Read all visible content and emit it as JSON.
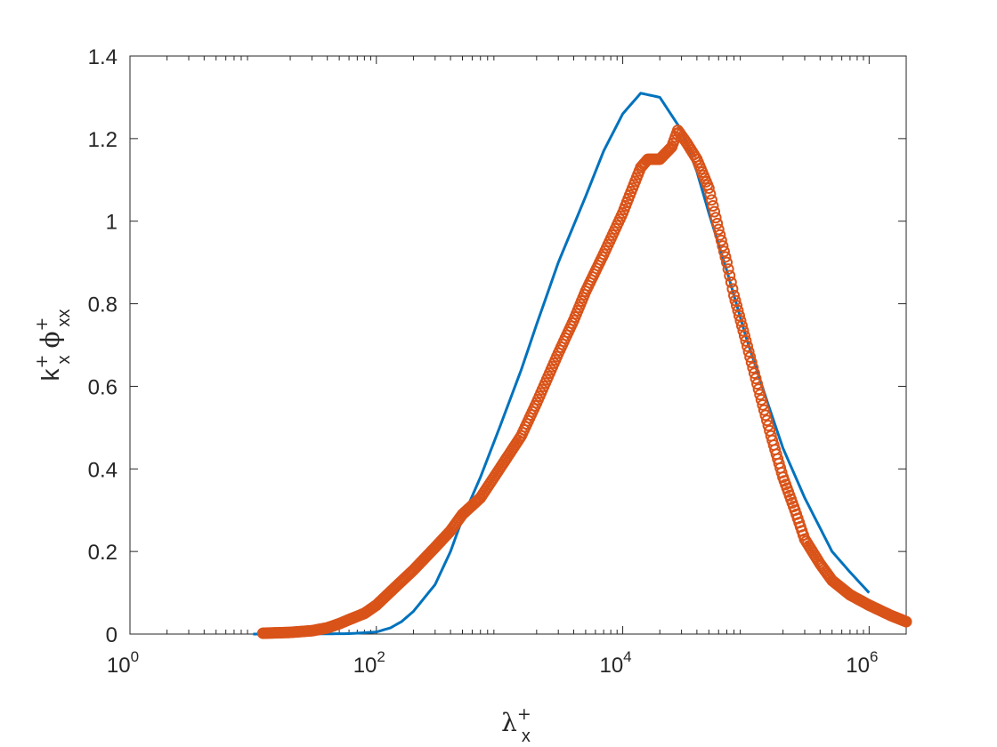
{
  "chart_data": {
    "type": "line",
    "x_scale": "log",
    "xlim": [
      1,
      2000000
    ],
    "ylim": [
      0,
      1.4
    ],
    "x_ticks": [
      {
        "value": 1,
        "base": "10",
        "exp": "0"
      },
      {
        "value": 100,
        "base": "10",
        "exp": "2"
      },
      {
        "value": 10000,
        "base": "10",
        "exp": "4"
      },
      {
        "value": 1000000,
        "base": "10",
        "exp": "6"
      }
    ],
    "y_ticks": [
      {
        "value": 0,
        "label": "0"
      },
      {
        "value": 0.2,
        "label": "0.2"
      },
      {
        "value": 0.4,
        "label": "0.4"
      },
      {
        "value": 0.6,
        "label": "0.6"
      },
      {
        "value": 0.8,
        "label": "0.8"
      },
      {
        "value": 1.0,
        "label": "1"
      },
      {
        "value": 1.2,
        "label": "1.2"
      },
      {
        "value": 1.4,
        "label": "1.4"
      }
    ],
    "xlabel": {
      "symbol": "λ",
      "sup": "+",
      "sub": "x"
    },
    "ylabel": {
      "part1": "k",
      "sup1": "+",
      "sub1": "x",
      "part2": "ϕ",
      "sup2": "+",
      "sub2": "xx"
    },
    "grid": false,
    "series": [
      {
        "style": "line",
        "color": "#0072BD",
        "points": [
          [
            10,
            0
          ],
          [
            30,
            0.0002
          ],
          [
            60,
            0.001
          ],
          [
            100,
            0.005
          ],
          [
            130,
            0.015
          ],
          [
            160,
            0.03
          ],
          [
            200,
            0.055
          ],
          [
            300,
            0.12
          ],
          [
            400,
            0.2
          ],
          [
            500,
            0.28
          ],
          [
            700,
            0.38
          ],
          [
            1000,
            0.5
          ],
          [
            1500,
            0.64
          ],
          [
            2000,
            0.75
          ],
          [
            3000,
            0.9
          ],
          [
            5000,
            1.06
          ],
          [
            7000,
            1.17
          ],
          [
            10000,
            1.26
          ],
          [
            14000,
            1.31
          ],
          [
            20000,
            1.3
          ],
          [
            30000,
            1.22
          ],
          [
            40000,
            1.12
          ],
          [
            50000,
            1.02
          ],
          [
            70000,
            0.88
          ],
          [
            100000,
            0.72
          ],
          [
            150000,
            0.56
          ],
          [
            200000,
            0.45
          ],
          [
            300000,
            0.33
          ],
          [
            500000,
            0.2
          ],
          [
            700000,
            0.15
          ],
          [
            1000000,
            0.1
          ]
        ]
      },
      {
        "style": "markers",
        "marker": "circle",
        "color": "#D95319",
        "points": [
          [
            12,
            0.002
          ],
          [
            20,
            0.004
          ],
          [
            30,
            0.008
          ],
          [
            40,
            0.015
          ],
          [
            50,
            0.025
          ],
          [
            60,
            0.035
          ],
          [
            80,
            0.05
          ],
          [
            100,
            0.07
          ],
          [
            150,
            0.12
          ],
          [
            200,
            0.155
          ],
          [
            300,
            0.21
          ],
          [
            400,
            0.25
          ],
          [
            500,
            0.29
          ],
          [
            700,
            0.33
          ],
          [
            1000,
            0.4
          ],
          [
            1500,
            0.48
          ],
          [
            2000,
            0.56
          ],
          [
            3000,
            0.68
          ],
          [
            4000,
            0.76
          ],
          [
            5000,
            0.83
          ],
          [
            7000,
            0.92
          ],
          [
            10000,
            1.02
          ],
          [
            12000,
            1.08
          ],
          [
            14000,
            1.13
          ],
          [
            16000,
            1.15
          ],
          [
            20000,
            1.15
          ],
          [
            25000,
            1.18
          ],
          [
            28000,
            1.22
          ],
          [
            33000,
            1.19
          ],
          [
            40000,
            1.15
          ],
          [
            50000,
            1.08
          ],
          [
            60000,
            0.98
          ],
          [
            70000,
            0.9
          ],
          [
            80000,
            0.82
          ],
          [
            100000,
            0.71
          ],
          [
            130000,
            0.58
          ],
          [
            160000,
            0.48
          ],
          [
            200000,
            0.38
          ],
          [
            250000,
            0.3
          ],
          [
            300000,
            0.23
          ],
          [
            400000,
            0.17
          ],
          [
            500000,
            0.13
          ],
          [
            700000,
            0.095
          ],
          [
            1000000,
            0.07
          ],
          [
            1500000,
            0.045
          ],
          [
            2000000,
            0.03
          ]
        ]
      }
    ]
  }
}
